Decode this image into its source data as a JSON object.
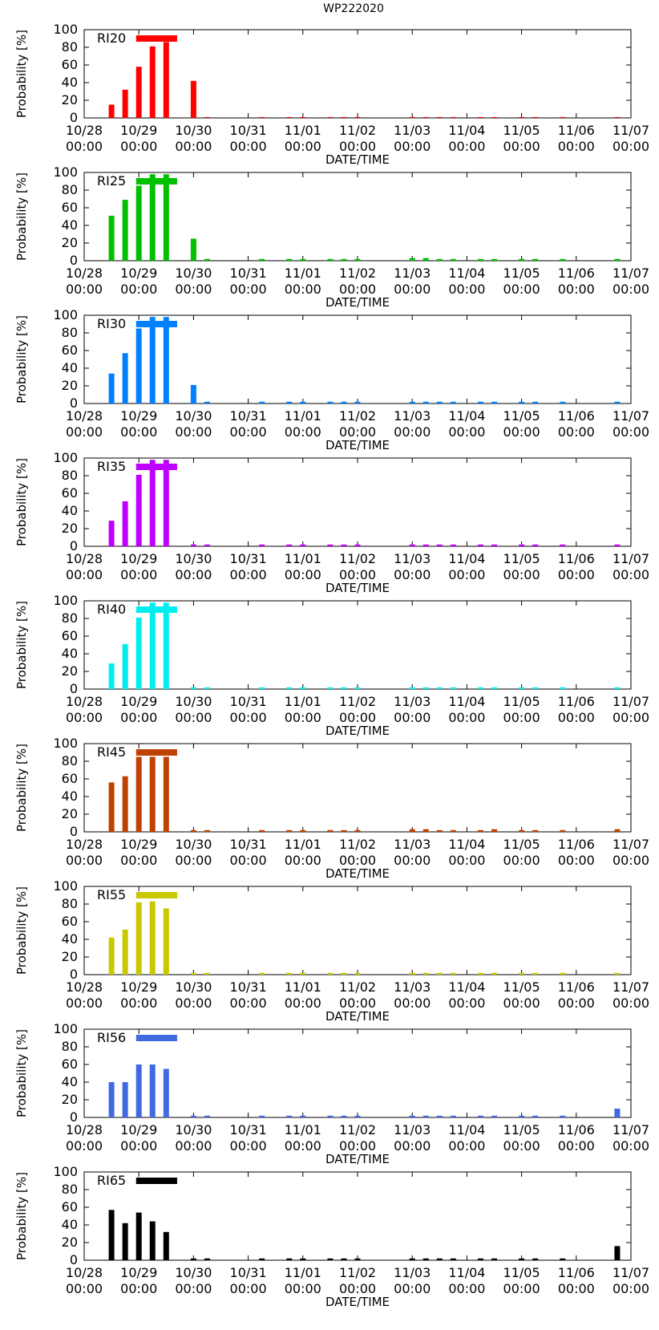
{
  "title": "WP222020",
  "chart_data": {
    "type": "bar",
    "title": "WP222020",
    "xlabel": "DATE/TIME",
    "ylabel": "Probability [%]",
    "ylim": [
      0,
      100
    ],
    "yticks": [
      "0",
      "20",
      "40",
      "60",
      "80",
      "100"
    ],
    "x_unit": "days since 10/28 00:00",
    "xlim": [
      0,
      10
    ],
    "xticks": [
      {
        "x": 0,
        "date": "10/28",
        "time": "00:00"
      },
      {
        "x": 1,
        "date": "10/29",
        "time": "00:00"
      },
      {
        "x": 2,
        "date": "10/30",
        "time": "00:00"
      },
      {
        "x": 3,
        "date": "10/31",
        "time": "00:00"
      },
      {
        "x": 4,
        "date": "11/01",
        "time": "00:00"
      },
      {
        "x": 5,
        "date": "11/02",
        "time": "00:00"
      },
      {
        "x": 6,
        "date": "11/03",
        "time": "00:00"
      },
      {
        "x": 7,
        "date": "11/04",
        "time": "00:00"
      },
      {
        "x": 8,
        "date": "11/05",
        "time": "00:00"
      },
      {
        "x": 9,
        "date": "11/06",
        "time": "00:00"
      },
      {
        "x": 10,
        "date": "11/07",
        "time": "00:00"
      }
    ],
    "x": [
      0.5,
      0.75,
      1.0,
      1.25,
      1.5,
      2.0,
      2.25,
      3.25,
      3.75,
      4.0,
      4.5,
      4.75,
      5.0,
      6.0,
      6.25,
      6.5,
      6.75,
      7.25,
      7.5,
      8.0,
      8.25,
      8.75,
      9.75
    ],
    "panels": [
      {
        "name": "RI20",
        "color": "#ff0000",
        "threshold": 90,
        "values": [
          15,
          32,
          58,
          81,
          86,
          42,
          1,
          1,
          1,
          1,
          1,
          1,
          1,
          1,
          1,
          1,
          1,
          1,
          1,
          1,
          1,
          1,
          1
        ]
      },
      {
        "name": "RI25",
        "color": "#00c000",
        "threshold": 90,
        "values": [
          51,
          69,
          85,
          98,
          98,
          25,
          2,
          2,
          2,
          2,
          2,
          2,
          2,
          3,
          3,
          2,
          2,
          2,
          2,
          2,
          2,
          2,
          2
        ]
      },
      {
        "name": "RI30",
        "color": "#0080ff",
        "threshold": 90,
        "values": [
          34,
          57,
          85,
          98,
          98,
          21,
          2,
          2,
          2,
          2,
          2,
          2,
          2,
          2,
          2,
          2,
          2,
          2,
          2,
          2,
          2,
          2,
          2
        ]
      },
      {
        "name": "RI35",
        "color": "#c000ff",
        "threshold": 90,
        "values": [
          29,
          51,
          81,
          98,
          98,
          2,
          2,
          2,
          2,
          2,
          2,
          2,
          2,
          2,
          2,
          2,
          2,
          2,
          2,
          2,
          2,
          2,
          2
        ]
      },
      {
        "name": "RI40",
        "color": "#00eeee",
        "threshold": 90,
        "values": [
          29,
          51,
          81,
          98,
          98,
          2,
          2,
          2,
          2,
          2,
          2,
          2,
          2,
          2,
          2,
          2,
          2,
          2,
          2,
          2,
          2,
          2,
          2
        ]
      },
      {
        "name": "RI45",
        "color": "#c04000",
        "threshold": 90,
        "values": [
          56,
          63,
          85,
          85,
          85,
          2,
          2,
          2,
          2,
          2,
          2,
          2,
          2,
          3,
          3,
          2,
          2,
          2,
          3,
          2,
          2,
          2,
          3
        ]
      },
      {
        "name": "RI55",
        "color": "#c8c800",
        "threshold": 90,
        "values": [
          42,
          51,
          82,
          83,
          75,
          2,
          2,
          2,
          2,
          2,
          2,
          2,
          2,
          2,
          2,
          2,
          2,
          2,
          2,
          2,
          2,
          2,
          2
        ]
      },
      {
        "name": "RI56",
        "color": "#4169e1",
        "threshold": 90,
        "values": [
          40,
          40,
          60,
          60,
          55,
          2,
          2,
          2,
          2,
          2,
          2,
          2,
          2,
          2,
          2,
          2,
          2,
          2,
          2,
          2,
          2,
          2,
          10
        ]
      },
      {
        "name": "RI65",
        "color": "#000000",
        "threshold": 90,
        "values": [
          57,
          42,
          54,
          44,
          32,
          2,
          2,
          2,
          2,
          2,
          2,
          2,
          2,
          2,
          2,
          2,
          2,
          2,
          2,
          2,
          2,
          2,
          16
        ]
      }
    ],
    "threshold_span": [
      0.95,
      1.7
    ],
    "grid": false,
    "legend": "top-left"
  }
}
